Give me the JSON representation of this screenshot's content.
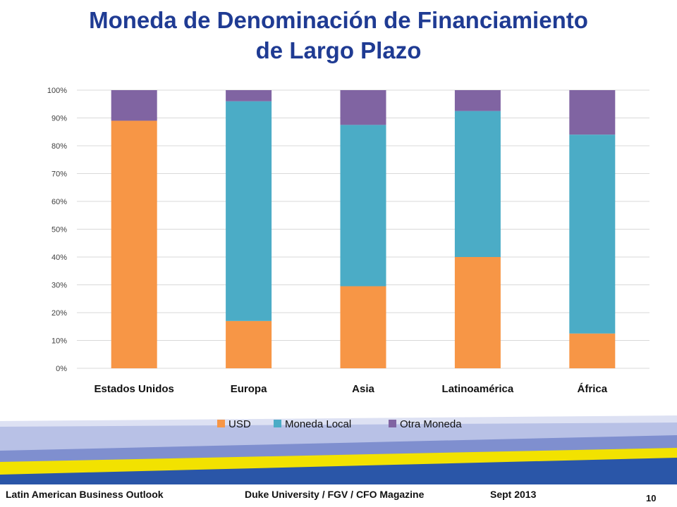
{
  "slide": {
    "title_line1": "Moneda de Denominación de Financiamiento",
    "title_line2": "de Largo Plazo",
    "footer_left": "Latin American Business Outlook",
    "footer_center": "Duke University / FGV / CFO Magazine",
    "footer_date": "Sept 2013",
    "page_number": "10"
  },
  "colors": {
    "title": "#1f3b93",
    "usd": "#f79646",
    "local": "#4bacc6",
    "other": "#8064a2",
    "grid": "#d9d9d9",
    "band_light": "#b8c1e6",
    "band_yellow": "#f2e200",
    "band_blue": "#2a56a8"
  },
  "chart_data": {
    "type": "bar",
    "stacked": true,
    "categories": [
      "Estados Unidos",
      "Europa",
      "Asia",
      "Latinoamérica",
      "África"
    ],
    "series": [
      {
        "name": "USD",
        "values": [
          89,
          17,
          29.5,
          40,
          12.5
        ]
      },
      {
        "name": "Moneda Local",
        "values": [
          0,
          79,
          58,
          52.5,
          71.5
        ]
      },
      {
        "name": "Otra Moneda",
        "values": [
          11,
          4,
          12.5,
          7.5,
          16
        ]
      }
    ],
    "yticks": [
      "0%",
      "10%",
      "20%",
      "30%",
      "40%",
      "50%",
      "60%",
      "70%",
      "80%",
      "90%",
      "100%"
    ],
    "ylim": [
      0,
      100
    ],
    "grid": true,
    "legend_position": "bottom"
  }
}
